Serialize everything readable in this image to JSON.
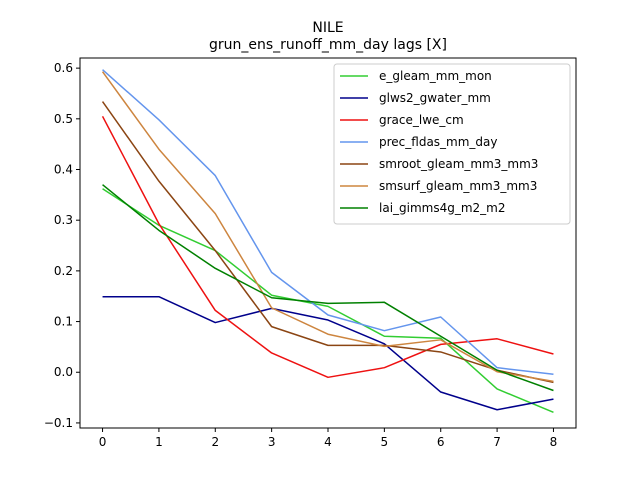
{
  "chart_data": {
    "type": "line",
    "title": "NILE",
    "subtitle": "grun_ens_runoff_mm_day lags [X]",
    "xlabel": "",
    "ylabel": "",
    "x": [
      0,
      1,
      2,
      3,
      4,
      5,
      6,
      7,
      8
    ],
    "xlim": [
      -0.4,
      8.4
    ],
    "ylim": [
      -0.11,
      0.62
    ],
    "xticks": [
      "0",
      "1",
      "2",
      "3",
      "4",
      "5",
      "6",
      "7",
      "8"
    ],
    "yticks": [
      "−0.1",
      "0.0",
      "0.1",
      "0.2",
      "0.3",
      "0.4",
      "0.5",
      "0.6"
    ],
    "grid": false,
    "legend_position": "top-right",
    "series": [
      {
        "name": "e_gleam_mm_mon",
        "color": "#32cd32",
        "values": [
          0.362,
          0.29,
          0.24,
          0.152,
          0.13,
          0.071,
          0.067,
          -0.033,
          -0.079
        ]
      },
      {
        "name": "glws2_gwater_mm",
        "color": "#00008b",
        "values": [
          0.149,
          0.149,
          0.098,
          0.126,
          0.103,
          0.056,
          -0.039,
          -0.074,
          -0.053
        ]
      },
      {
        "name": "grace_lwe_cm",
        "color": "#ee1111",
        "values": [
          0.505,
          0.293,
          0.122,
          0.038,
          -0.01,
          0.009,
          0.055,
          0.066,
          0.036
        ]
      },
      {
        "name": "prec_fldas_mm_day",
        "color": "#6495ed",
        "values": [
          0.597,
          0.498,
          0.388,
          0.197,
          0.113,
          0.082,
          0.109,
          0.009,
          -0.004
        ]
      },
      {
        "name": "smroot_gleam_mm3_mm3",
        "color": "#8b4513",
        "values": [
          0.534,
          0.377,
          0.24,
          0.09,
          0.053,
          0.053,
          0.04,
          0.004,
          -0.02
        ]
      },
      {
        "name": "smsurf_gleam_mm3_mm3",
        "color": "#cd853f",
        "values": [
          0.593,
          0.44,
          0.313,
          0.127,
          0.075,
          0.051,
          0.064,
          0.001,
          -0.018
        ]
      },
      {
        "name": "lai_gimms4g_m2_m2",
        "color": "#008000",
        "values": [
          0.37,
          0.28,
          0.205,
          0.147,
          0.136,
          0.138,
          0.071,
          0.004,
          -0.036
        ]
      }
    ]
  }
}
